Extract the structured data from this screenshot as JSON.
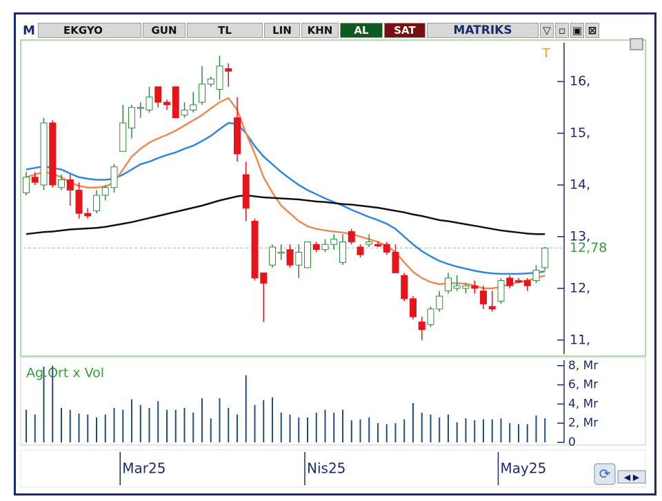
{
  "toolbar": {
    "logo": "M",
    "symbol": "EKGYO",
    "period": "GUN",
    "currency": "TL",
    "scale": "LIN",
    "khn": "KHN",
    "buy": "AL",
    "sell": "SAT",
    "brand": "MATRIKS"
  },
  "chart_data": [
    {
      "type": "candlestick",
      "marker_label": "T",
      "categories": [
        null,
        null,
        null,
        null,
        null,
        null,
        null,
        null,
        null,
        null,
        null,
        "Mar25",
        null,
        null,
        null,
        null,
        null,
        null,
        null,
        null,
        null,
        null,
        null,
        null,
        null,
        null,
        null,
        null,
        null,
        null,
        null,
        null,
        "Nis25",
        null,
        null,
        null,
        null,
        null,
        null,
        null,
        null,
        null,
        null,
        null,
        null,
        null,
        null,
        null,
        null,
        null,
        null,
        null,
        null,
        null,
        "May25",
        null,
        null,
        null,
        null,
        null
      ],
      "open": [
        13.85,
        14.15,
        14.0,
        15.2,
        13.95,
        14.1,
        13.9,
        13.45,
        13.5,
        13.8,
        13.95,
        14.65,
        15.1,
        15.5,
        15.45,
        15.9,
        15.6,
        15.9,
        15.35,
        15.45,
        15.6,
        15.95,
        15.85,
        16.25,
        15.3,
        14.2,
        13.3,
        12.3,
        12.45,
        12.7,
        12.75,
        12.45,
        12.4,
        12.85,
        12.75,
        12.85,
        12.5,
        13.1,
        12.8,
        12.85,
        12.85,
        12.85,
        12.7,
        12.25,
        11.8,
        11.35,
        11.3,
        11.6,
        11.95,
        12.0,
        12.0,
        12.05,
        11.95,
        11.65,
        11.75,
        12.2,
        12.15,
        12.15,
        12.15,
        12.4
      ],
      "high": [
        14.25,
        14.25,
        15.3,
        15.25,
        14.2,
        14.2,
        14.05,
        13.55,
        13.9,
        14.0,
        14.4,
        15.55,
        15.55,
        15.6,
        15.9,
        15.9,
        15.65,
        15.9,
        15.6,
        15.8,
        16.3,
        16.1,
        16.5,
        16.35,
        15.7,
        14.45,
        13.35,
        12.3,
        12.85,
        12.85,
        12.85,
        12.85,
        12.9,
        12.9,
        12.95,
        13.05,
        13.05,
        13.15,
        12.85,
        13.05,
        12.9,
        12.9,
        12.85,
        12.3,
        11.85,
        11.45,
        11.65,
        11.95,
        12.3,
        12.25,
        12.1,
        12.15,
        12.05,
        11.95,
        12.2,
        12.25,
        12.2,
        12.2,
        12.45,
        12.8
      ],
      "low": [
        13.8,
        14.0,
        13.9,
        13.95,
        13.9,
        13.6,
        13.35,
        13.35,
        13.45,
        13.7,
        13.85,
        14.65,
        14.9,
        15.3,
        15.4,
        15.5,
        15.45,
        15.3,
        15.3,
        15.4,
        15.55,
        15.9,
        15.65,
        15.9,
        14.45,
        13.3,
        12.15,
        11.35,
        12.4,
        12.55,
        12.4,
        12.2,
        12.4,
        12.7,
        12.7,
        12.75,
        12.45,
        12.85,
        12.6,
        12.8,
        12.8,
        12.65,
        12.3,
        11.75,
        11.4,
        11.0,
        11.25,
        11.55,
        11.9,
        11.95,
        11.9,
        11.9,
        11.6,
        11.55,
        11.7,
        12.0,
        12.1,
        11.95,
        12.1,
        12.35
      ],
      "close": [
        14.15,
        14.05,
        15.2,
        14.0,
        14.1,
        13.9,
        13.45,
        13.4,
        13.8,
        13.95,
        14.35,
        15.2,
        15.5,
        15.5,
        15.7,
        15.6,
        15.55,
        15.3,
        15.45,
        15.55,
        15.95,
        16.05,
        16.3,
        16.2,
        14.6,
        13.55,
        12.2,
        12.1,
        12.8,
        12.7,
        12.45,
        12.7,
        12.9,
        12.75,
        12.85,
        12.95,
        12.9,
        12.9,
        12.65,
        12.9,
        12.82,
        12.7,
        12.3,
        11.8,
        11.45,
        11.2,
        11.6,
        11.85,
        12.2,
        12.05,
        12.05,
        12.0,
        11.7,
        11.6,
        12.15,
        12.05,
        12.12,
        12.05,
        12.35,
        12.78
      ],
      "up_color": "#2e8b3e",
      "down_color": "#e8141c",
      "series": [
        {
          "color": "#2f86e0",
          "values": [
            14.3,
            14.33,
            14.36,
            14.33,
            14.3,
            14.22,
            14.15,
            14.12,
            14.1,
            14.1,
            14.12,
            14.2,
            14.3,
            14.4,
            14.45,
            14.52,
            14.58,
            14.63,
            14.7,
            14.76,
            14.85,
            14.95,
            15.08,
            15.2,
            15.18,
            15.0,
            14.75,
            14.55,
            14.4,
            14.25,
            14.12,
            14.0,
            13.9,
            13.82,
            13.74,
            13.67,
            13.6,
            13.52,
            13.45,
            13.38,
            13.32,
            13.25,
            13.15,
            13.0,
            12.85,
            12.72,
            12.62,
            12.53,
            12.47,
            12.42,
            12.38,
            12.34,
            12.31,
            12.29,
            12.28,
            12.28,
            12.28,
            12.29,
            12.3,
            12.33
          ]
        },
        {
          "color": "#f08a50",
          "values": [
            14.15,
            14.2,
            14.25,
            14.22,
            14.15,
            14.05,
            13.98,
            13.95,
            13.95,
            13.97,
            14.05,
            14.3,
            14.55,
            14.7,
            14.82,
            14.9,
            14.97,
            15.05,
            15.15,
            15.25,
            15.35,
            15.48,
            15.6,
            15.68,
            15.45,
            15.0,
            14.6,
            14.15,
            13.85,
            13.6,
            13.45,
            13.3,
            13.2,
            13.15,
            13.12,
            13.1,
            13.08,
            13.05,
            13.0,
            12.95,
            12.9,
            12.82,
            12.7,
            12.5,
            12.32,
            12.2,
            12.12,
            12.08,
            12.1,
            12.1,
            12.09,
            12.05,
            12.0,
            12.0,
            12.03,
            12.08,
            12.12,
            12.15,
            12.2,
            12.25
          ]
        },
        {
          "color": "#111111",
          "values": [
            13.05,
            13.07,
            13.09,
            13.1,
            13.12,
            13.14,
            13.15,
            13.16,
            13.17,
            13.19,
            13.22,
            13.25,
            13.28,
            13.32,
            13.36,
            13.4,
            13.44,
            13.48,
            13.52,
            13.56,
            13.6,
            13.65,
            13.7,
            13.74,
            13.78,
            13.8,
            13.78,
            13.76,
            13.75,
            13.74,
            13.73,
            13.72,
            13.7,
            13.68,
            13.67,
            13.65,
            13.63,
            13.62,
            13.6,
            13.58,
            13.56,
            13.53,
            13.5,
            13.47,
            13.43,
            13.4,
            13.36,
            13.32,
            13.3,
            13.27,
            13.24,
            13.21,
            13.18,
            13.15,
            13.12,
            13.1,
            13.08,
            13.06,
            13.05,
            13.05
          ]
        }
      ],
      "last_value": {
        "value": 12.78,
        "label": "12,78"
      },
      "last_color": "#b9a0e8",
      "ylim": [
        10.73,
        16.75
      ],
      "yticks": [
        {
          "value": 11,
          "label": "11,"
        },
        {
          "value": 12,
          "label": "12,"
        },
        {
          "value": 13,
          "label": "13,"
        },
        {
          "value": 14,
          "label": "14,"
        },
        {
          "value": 15,
          "label": "15,"
        },
        {
          "value": 16,
          "label": "16,"
        }
      ]
    },
    {
      "type": "bar",
      "title": "Ag.Ort x Vol",
      "color": "#1f4e79",
      "values": [
        3.4,
        2.9,
        7.9,
        8.0,
        3.6,
        3.4,
        3.0,
        2.9,
        2.6,
        2.9,
        3.6,
        3.4,
        4.5,
        3.9,
        3.6,
        4.3,
        3.4,
        3.4,
        3.6,
        3.1,
        4.6,
        2.5,
        4.6,
        3.6,
        2.9,
        7.0,
        3.9,
        4.4,
        4.7,
        3.1,
        2.9,
        2.6,
        2.6,
        3.1,
        3.4,
        3.1,
        3.4,
        2.3,
        2.4,
        2.6,
        2.0,
        1.9,
        2.0,
        2.4,
        4.1,
        3.1,
        2.9,
        2.6,
        2.9,
        2.1,
        2.5,
        2.3,
        2.4,
        2.4,
        2.5,
        2.0,
        1.9,
        1.9,
        2.8,
        2.5
      ],
      "ylim": [
        0,
        8.57
      ],
      "yticks": [
        0,
        {
          "value": 2,
          "label": "2, Mr"
        },
        {
          "value": 4,
          "label": "4, Mr"
        },
        {
          "value": 6,
          "label": "6, Mr"
        },
        {
          "value": 8,
          "label": "8, Mr"
        }
      ]
    }
  ]
}
